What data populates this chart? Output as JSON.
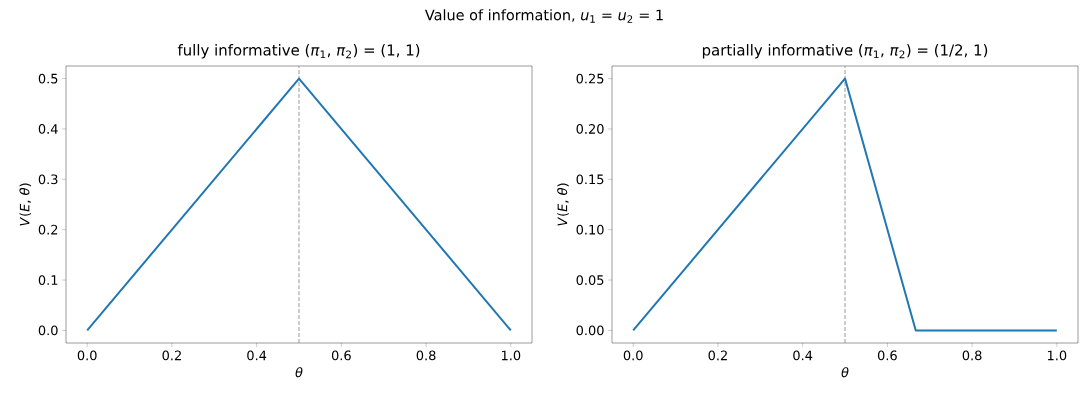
{
  "chart_data": [
    {
      "type": "other",
      "title": "Value of information, *u*$_{1}$ = *u*$_{2}$ = 1"
    },
    {
      "type": "line",
      "title": "fully informative (*π*$_{1}$, *π*$_{2}$) = (1, 1)",
      "xlabel": "*θ*",
      "ylabel": "*V*(*E*, *θ*)",
      "x": [
        0,
        0.5,
        1
      ],
      "values": [
        0,
        0.5,
        0
      ],
      "color": "#1f77b4",
      "xlim": [
        -0.05,
        1.05
      ],
      "ylim": [
        -0.025,
        0.525
      ],
      "xticks": [
        {
          "value": 0,
          "label": "0.0"
        },
        {
          "value": 0.2,
          "label": "0.2"
        },
        {
          "value": 0.4,
          "label": "0.4"
        },
        {
          "value": 0.6,
          "label": "0.6"
        },
        {
          "value": 0.8,
          "label": "0.8"
        },
        {
          "value": 1,
          "label": "1.0"
        }
      ],
      "yticks": [
        {
          "value": 0,
          "label": "0.0"
        },
        {
          "value": 0.1,
          "label": "0.1"
        },
        {
          "value": 0.2,
          "label": "0.2"
        },
        {
          "value": 0.3,
          "label": "0.3"
        },
        {
          "value": 0.4,
          "label": "0.4"
        },
        {
          "value": 0.5,
          "label": "0.5"
        }
      ],
      "ref_lines": [
        {
          "axis": "x",
          "value": 0.5,
          "color": "#999999",
          "line_style": "dashed"
        }
      ]
    },
    {
      "type": "line",
      "title": "partially informative (*π*$_{1}$, *π*$_{2}$) = (1/2, 1)",
      "xlabel": "*θ*",
      "ylabel": "*V*(*E*, *θ*)",
      "x": [
        0,
        0.5,
        0.667,
        1
      ],
      "values": [
        0,
        0.25,
        0,
        0
      ],
      "color": "#1f77b4",
      "xlim": [
        -0.05,
        1.05
      ],
      "ylim": [
        -0.0125,
        0.2625
      ],
      "xticks": [
        {
          "value": 0,
          "label": "0.0"
        },
        {
          "value": 0.2,
          "label": "0.2"
        },
        {
          "value": 0.4,
          "label": "0.4"
        },
        {
          "value": 0.6,
          "label": "0.6"
        },
        {
          "value": 0.8,
          "label": "0.8"
        },
        {
          "value": 1,
          "label": "1.0"
        }
      ],
      "yticks": [
        {
          "value": 0,
          "label": "0.00"
        },
        {
          "value": 0.05,
          "label": "0.05"
        },
        {
          "value": 0.1,
          "label": "0.10"
        },
        {
          "value": 0.15,
          "label": "0.15"
        },
        {
          "value": 0.2,
          "label": "0.20"
        },
        {
          "value": 0.25,
          "label": "0.25"
        }
      ],
      "ref_lines": [
        {
          "axis": "x",
          "value": 0.5,
          "color": "#999999",
          "line_style": "dashed"
        }
      ]
    }
  ]
}
